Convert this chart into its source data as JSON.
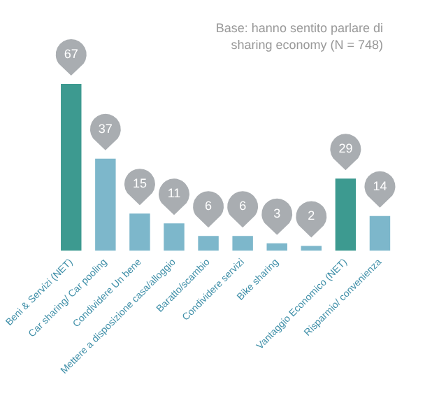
{
  "chart_data": {
    "type": "bar",
    "categories": [
      "Beni & Servizi (NET)",
      "Car sharing/ Car pooling",
      "Condividere Un bene",
      "Mettere a disposizione casa/alloggio",
      "Baratto/scambio",
      "Condividere servizi",
      "Bike sharing",
      null,
      "Vantaggio Economico (NET)",
      "Risparmio/ convenienza"
    ],
    "values": [
      67,
      37,
      15,
      11,
      6,
      6,
      3,
      2,
      29,
      14
    ],
    "colors": [
      "#3d9a90",
      "#7db7cb",
      "#7db7cb",
      "#7db7cb",
      "#7db7cb",
      "#7db7cb",
      "#7db7cb",
      "#7db7cb",
      "#3d9a90",
      "#7db7cb"
    ],
    "data_labels": true,
    "grid": false,
    "legend": false,
    "tick_labels": "x",
    "annotations": [
      "Base: hanno sentito parlare di sharing economy (N = 748)"
    ]
  }
}
